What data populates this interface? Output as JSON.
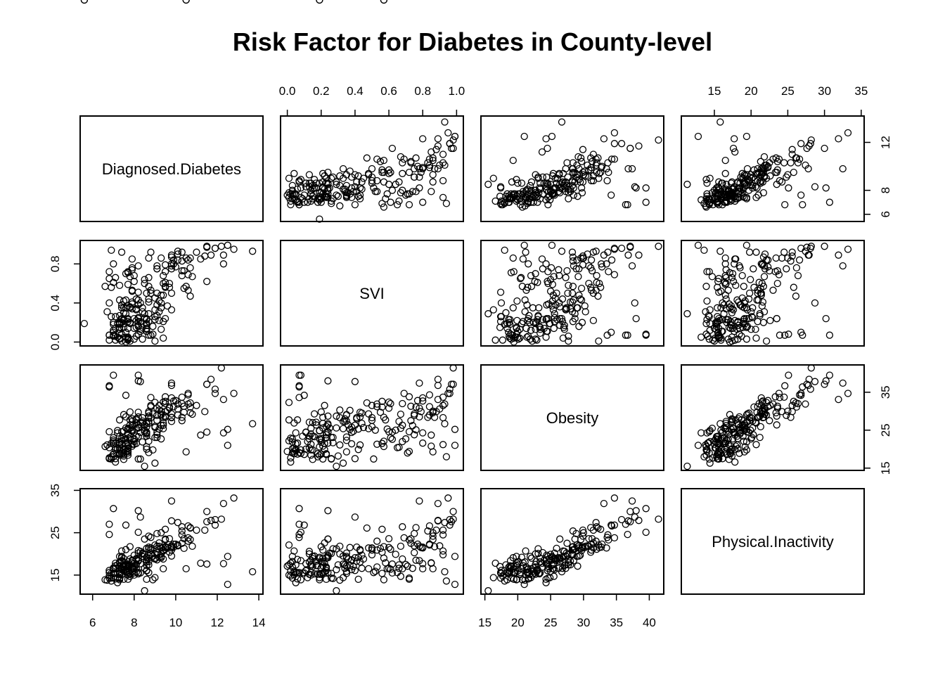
{
  "chart_data": {
    "type": "scatter",
    "title": "Risk Factor for Diabetes in County-level",
    "variables": [
      "Diagnosed.Diabetes",
      "SVI",
      "Obesity",
      "Physical.Inactivity"
    ],
    "axis_ranges": {
      "Diagnosed.Diabetes": [
        5.4,
        14.2
      ],
      "SVI": [
        -0.04,
        1.04
      ],
      "Obesity": [
        14.4,
        42.2
      ],
      "Physical.Inactivity": [
        10.5,
        35.4
      ]
    },
    "axis_ticks": {
      "Diagnosed.Diabetes": {
        "top": [],
        "right": [
          "6",
          "8",
          "12"
        ],
        "bottom": [
          "6",
          "8",
          "10",
          "12",
          "14"
        ],
        "left": []
      },
      "SVI": {
        "top": [
          "0.0",
          "0.2",
          "0.4",
          "0.6",
          "0.8",
          "1.0"
        ],
        "left": [
          "0.0",
          "0.4",
          "0.8"
        ]
      },
      "Obesity": {
        "right": [
          "15",
          "25",
          "35"
        ],
        "bottom": [
          "15",
          "20",
          "25",
          "30",
          "35",
          "40"
        ]
      },
      "Physical.Inactivity": {
        "top": [
          "15",
          "20",
          "25",
          "30",
          "35"
        ],
        "left": [
          "15",
          "25",
          "35"
        ]
      }
    },
    "grid": false,
    "legend": "none",
    "n_points": 220,
    "observations": {
      "Diagnosed.Diabetes": [
        10.1,
        7.3,
        7.4,
        6.8,
        7.1,
        9.9,
        7.7,
        8.6,
        11.0,
        8.7,
        9.2,
        9.8,
        7.8,
        11.7,
        7.4,
        7.6,
        9.8,
        7.4,
        9.5,
        7.8,
        7.6,
        9.1,
        7.3,
        9.3,
        10.1,
        7.3,
        7.2,
        9.4,
        7.6,
        8.7,
        10.4,
        7.7,
        8.4,
        9.2,
        8.8,
        10.0,
        8.9,
        9.5,
        9.7,
        9.8,
        7.8,
        9.2,
        10.3,
        10.3,
        7.4,
        6.6,
        8.7,
        8.5,
        7.1,
        8.4,
        8.1,
        7.9,
        7.5,
        9.9,
        6.9,
        10.6,
        8.7,
        12.2,
        7.9,
        7.0,
        8.1,
        7.5,
        7.9,
        12.3,
        10.8,
        7.2,
        7.2,
        9.1,
        7.3,
        9.4,
        11.5,
        7.0,
        7.7,
        10.3,
        7.9,
        7.0,
        10.6,
        9.4,
        6.8,
        8.6,
        9.1,
        7.3,
        9.5,
        9.0,
        8.0,
        9.4,
        10.3,
        7.9,
        7.8,
        9.8,
        9.3,
        8.8,
        9.5,
        7.7,
        7.7,
        7.7,
        6.9,
        12.8,
        8.0,
        8.5,
        8.6,
        8.2,
        11.9,
        8.7,
        10.7,
        8.1,
        8.7,
        10.6,
        7.5,
        9.3,
        10.1,
        8.1,
        10.7,
        7.9,
        9.3,
        7.1,
        11.9,
        7.7,
        8.2,
        8.4,
        6.9,
        8.7,
        7.0,
        7.9,
        8.2,
        7.4,
        9.1,
        8.5,
        7.1,
        7.8,
        7.3,
        7.7,
        7.3,
        7.0,
        7.6,
        8.6,
        8.0,
        7.0,
        7.4,
        9.0,
        7.3,
        9.5,
        8.2,
        8.1,
        10.4,
        6.8,
        11.4,
        7.7,
        10.7,
        7.3,
        9.1,
        7.5,
        6.8,
        9.6,
        7.7,
        9.0,
        9.0,
        9.5,
        8.8,
        11.5,
        9.8,
        9.4,
        7.0,
        9.7,
        7.7,
        9.8,
        7.3,
        8.6,
        7.6,
        8.2,
        8.3,
        6.7,
        7.5,
        9.3,
        7.3,
        8.6,
        7.7,
        7.7,
        7.4,
        8.6,
        7.5,
        8.6,
        8.2,
        8.9,
        8.6,
        7.0,
        7.5,
        12.3,
        6.8,
        7.9,
        11.5,
        8.4,
        8.2,
        8.8,
        8.3,
        10.5,
        8.3,
        7.4,
        9.8,
        7.5,
        12.5,
        7.6,
        8.2,
        11.2,
        7.7,
        8.0,
        8.0,
        7.3,
        7.6,
        8.1,
        8.2,
        9.1,
        12.5,
        8.3,
        7.1,
        8.7,
        7.8,
        6.8,
        9.0,
        13.7,
        8.2,
        8.5,
        10.5,
        5.6
      ],
      "SVI": [
        0.9,
        0.58,
        0.23,
        0.72,
        0.02,
        0.8,
        0.59,
        0.13,
        0.92,
        0.44,
        0.31,
        0.33,
        0.01,
        0.89,
        0.92,
        0.35,
        0.89,
        0.24,
        0.79,
        0.36,
        0.29,
        0.78,
        0.09,
        0.13,
        0.93,
        0.43,
        0.05,
        0.21,
        0.7,
        0.86,
        0.73,
        0.14,
        0.03,
        0.42,
        0.92,
        0.77,
        0.16,
        0.56,
        0.56,
        0.75,
        0.67,
        0.22,
        0.68,
        0.73,
        0.2,
        0.57,
        0.29,
        0.24,
        0.26,
        0.15,
        0.34,
        0.74,
        0.35,
        0.84,
        0.56,
        0.84,
        0.66,
        0.98,
        0.76,
        0.61,
        0.06,
        0.42,
        0.39,
        0.89,
        0.67,
        0.19,
        0.05,
        0.75,
        0.2,
        0.6,
        0.98,
        0.2,
        0.14,
        0.83,
        0.52,
        0.8,
        0.69,
        0.04,
        0.65,
        0.19,
        0.75,
        0.18,
        0.24,
        0.01,
        0.62,
        0.48,
        0.92,
        0.34,
        0.19,
        0.5,
        0.86,
        0.53,
        0.72,
        0.21,
        0.23,
        0.03,
        0.94,
        0.95,
        0.68,
        0.64,
        0.17,
        0.16,
        0.96,
        0.57,
        0.86,
        0.22,
        0.41,
        0.53,
        0.3,
        0.48,
        0.84,
        0.44,
        0.47,
        0.85,
        0.35,
        0.14,
        0.96,
        0.71,
        0.78,
        0.35,
        0.26,
        0.21,
        0.12,
        0.53,
        0.21,
        0.08,
        0.38,
        0.6,
        0.66,
        0.35,
        0.03,
        0.37,
        0.04,
        0.06,
        0.0,
        0.24,
        0.24,
        0.1,
        0.38,
        0.23,
        0.19,
        0.57,
        0.25,
        0.33,
        0.55,
        0.02,
        0.88,
        0.72,
        0.76,
        0.15,
        0.5,
        0.15,
        0.4,
        0.37,
        0.02,
        0.26,
        0.45,
        0.61,
        0.5,
        0.97,
        0.8,
        0.68,
        0.18,
        0.6,
        0.04,
        0.87,
        0.2,
        0.11,
        0.05,
        0.38,
        0.13,
        0.31,
        0.23,
        0.4,
        0.13,
        0.5,
        0.04,
        0.24,
        0.35,
        0.14,
        0.19,
        0.23,
        0.43,
        0.08,
        0.11,
        0.07,
        0.22,
        0.8,
        0.07,
        0.41,
        0.62,
        0.31,
        0.17,
        0.07,
        0.11,
        0.86,
        0.4,
        0.01,
        0.78,
        0.23,
        0.99,
        0.1,
        0.51,
        0.85,
        0.05,
        0.14,
        0.03,
        0.27,
        0.43,
        0.15,
        0.24,
        0.27,
        0.99,
        0.21,
        0.06,
        0.07,
        0.2,
        0.07,
        0.33,
        0.93,
        0.08,
        0.29,
        0.57,
        0.19
      ],
      "Obesity": [
        30.6,
        27.7,
        18.8,
        24.6,
        16.6,
        32.7,
        25.3,
        23.4,
        31.5,
        29.5,
        30.3,
        27.3,
        27.7,
        38.4,
        21.2,
        22.3,
        36.8,
        24.6,
        29.9,
        26.4,
        25.6,
        30.8,
        23.4,
        22.7,
        31.9,
        21.1,
        24.3,
        28.4,
        22.7,
        29.9,
        31.3,
        25.5,
        21.9,
        25.3,
        28.3,
        32.8,
        29.3,
        32.6,
        31.1,
        29.3,
        25.5,
        31.5,
        32.0,
        27.5,
        22.8,
        20.7,
        28.7,
        26.4,
        17.5,
        27.0,
        28.0,
        26.2,
        29.1,
        31.2,
        21.5,
        34.3,
        27.3,
        41.4,
        25.1,
        23.0,
        27.7,
        19.9,
        24.7,
        33.1,
        29.2,
        24.9,
        20.0,
        23.8,
        18.7,
        32.4,
        37.1,
        22.4,
        18.4,
        28.4,
        25.0,
        21.6,
        34.7,
        26.9,
        20.4,
        20.6,
        28.9,
        18.8,
        28.7,
        32.3,
        22.6,
        25.4,
        33.7,
        27.3,
        22.7,
        28.3,
        30.0,
        31.2,
        33.8,
        20.8,
        23.8,
        20.1,
        18.0,
        34.7,
        22.0,
        25.0,
        27.1,
        23.3,
        34.7,
        22.1,
        29.6,
        21.5,
        28.3,
        31.9,
        18.2,
        29.3,
        29.0,
        26.8,
        32.2,
        20.8,
        29.0,
        19.8,
        35.8,
        19.0,
        28.5,
        27.4,
        17.4,
        26.8,
        22.0,
        21.3,
        25.6,
        18.9,
        24.4,
        24.6,
        20.5,
        23.2,
        19.0,
        25.2,
        18.8,
        18.7,
        19.4,
        26.7,
        24.4,
        18.6,
        21.4,
        26.0,
        18.4,
        28.4,
        25.6,
        25.4,
        29.7,
        17.7,
        29.9,
        19.4,
        31.1,
        19.8,
        27.6,
        17.3,
        17.5,
        30.2,
        22.9,
        23.1,
        25.7,
        32.0,
        31.5,
        37.1,
        33.5,
        26.3,
        18.0,
        30.8,
        20.3,
        28.4,
        21.8,
        24.5,
        21.4,
        25.8,
        27.1,
        21.1,
        23.0,
        26.3,
        20.3,
        25.9,
        19.4,
        21.6,
        19.3,
        24.0,
        24.8,
        24.3,
        29.7,
        19.8,
        20.0,
        39.5,
        19.9,
        24.3,
        36.7,
        28.0,
        24.5,
        28.3,
        26.4,
        33.6,
        24.4,
        19.3,
        37.8,
        22.2,
        37.4,
        18.6,
        25.2,
        34.2,
        17.4,
        23.7,
        19.6,
        21.3,
        22.7,
        21.7,
        28.5,
        23.4,
        38.0,
        23.1,
        21.0,
        17.4,
        21.6,
        19.1,
        29.8,
        36.4,
        16.3,
        26.7,
        39.5,
        15.5
      ],
      "Physical.Inactivity": [
        21.9,
        17.9,
        16.6,
        14.3,
        17.8,
        21.6,
        16.5,
        18.1,
        25.6,
        19.7,
        21.8,
        19.5,
        17.4,
        27.9,
        20.7,
        15.9,
        27.8,
        19.4,
        21.5,
        18.8,
        16.3,
        21.8,
        15.5,
        20.0,
        27.4,
        18.1,
        13.2,
        20.9,
        17.5,
        24.2,
        23.6,
        17.5,
        19.4,
        19.2,
        19.8,
        22.3,
        19.5,
        25.8,
        20.4,
        21.9,
        14.7,
        22.6,
        26.4,
        22.5,
        18.2,
        13.9,
        21.2,
        23.5,
        15.4,
        19.4,
        17.4,
        16.6,
        17.1,
        22.3,
        15.4,
        26.6,
        17.4,
        28.2,
        18.5,
        16.4,
        18.7,
        14.0,
        17.0,
        31.9,
        21.8,
        14.4,
        17.4,
        20.3,
        15.4,
        21.5,
        30.0,
        16.7,
        15.6,
        25.4,
        15.9,
        16.5,
        23.8,
        20.7,
        15.6,
        19.2,
        24.8,
        17.2,
        23.5,
        22.1,
        15.5,
        16.5,
        24.5,
        16.6,
        15.2,
        20.9,
        25.0,
        20.9,
        23.3,
        17.2,
        16.9,
        18.2,
        13.6,
        33.2,
        16.5,
        19.9,
        17.3,
        15.3,
        26.8,
        19.0,
        23.4,
        15.7,
        21.6,
        23.0,
        17.4,
        21.4,
        22.1,
        16.6,
        26.1,
        17.9,
        19.4,
        17.2,
        28.1,
        17.1,
        18.4,
        20.2,
        14.3,
        18.2,
        14.4,
        16.9,
        19.0,
        18.4,
        18.6,
        16.6,
        16.6,
        15.4,
        14.3,
        17.3,
        15.9,
        15.5,
        17.1,
        19.1,
        19.7,
        15.5,
        16.3,
        19.0,
        13.9,
        21.7,
        20.2,
        17.6,
        21.3,
        14.8,
        25.6,
        14.0,
        26.2,
        19.4,
        19.8,
        17.0,
        16.1,
        21.5,
        15.9,
        20.1,
        18.8,
        21.1,
        21.4,
        27.6,
        21.4,
        18.8,
        15.3,
        23.6,
        15.1,
        21.7,
        15.2,
        16.1,
        15.7,
        18.5,
        20.6,
        13.8,
        16.1,
        19.1,
        15.2,
        21.3,
        15.6,
        15.6,
        19.1,
        18.5,
        18.9,
        14.0,
        20.8,
        13.9,
        16.0,
        30.7,
        17.8,
        17.7,
        24.6,
        18.3,
        17.6,
        20.0,
        18.3,
        23.9,
        17.7,
        16.5,
        28.7,
        15.0,
        32.5,
        16.8,
        19.4,
        26.8,
        15.6,
        17.8,
        15.6,
        15.0,
        16.9,
        14.2,
        21.0,
        18.9,
        30.2,
        21.2,
        12.8,
        15.5,
        14.1,
        15.6,
        21.7,
        27.0,
        14.4,
        15.8,
        25.1,
        11.3
      ]
    }
  }
}
